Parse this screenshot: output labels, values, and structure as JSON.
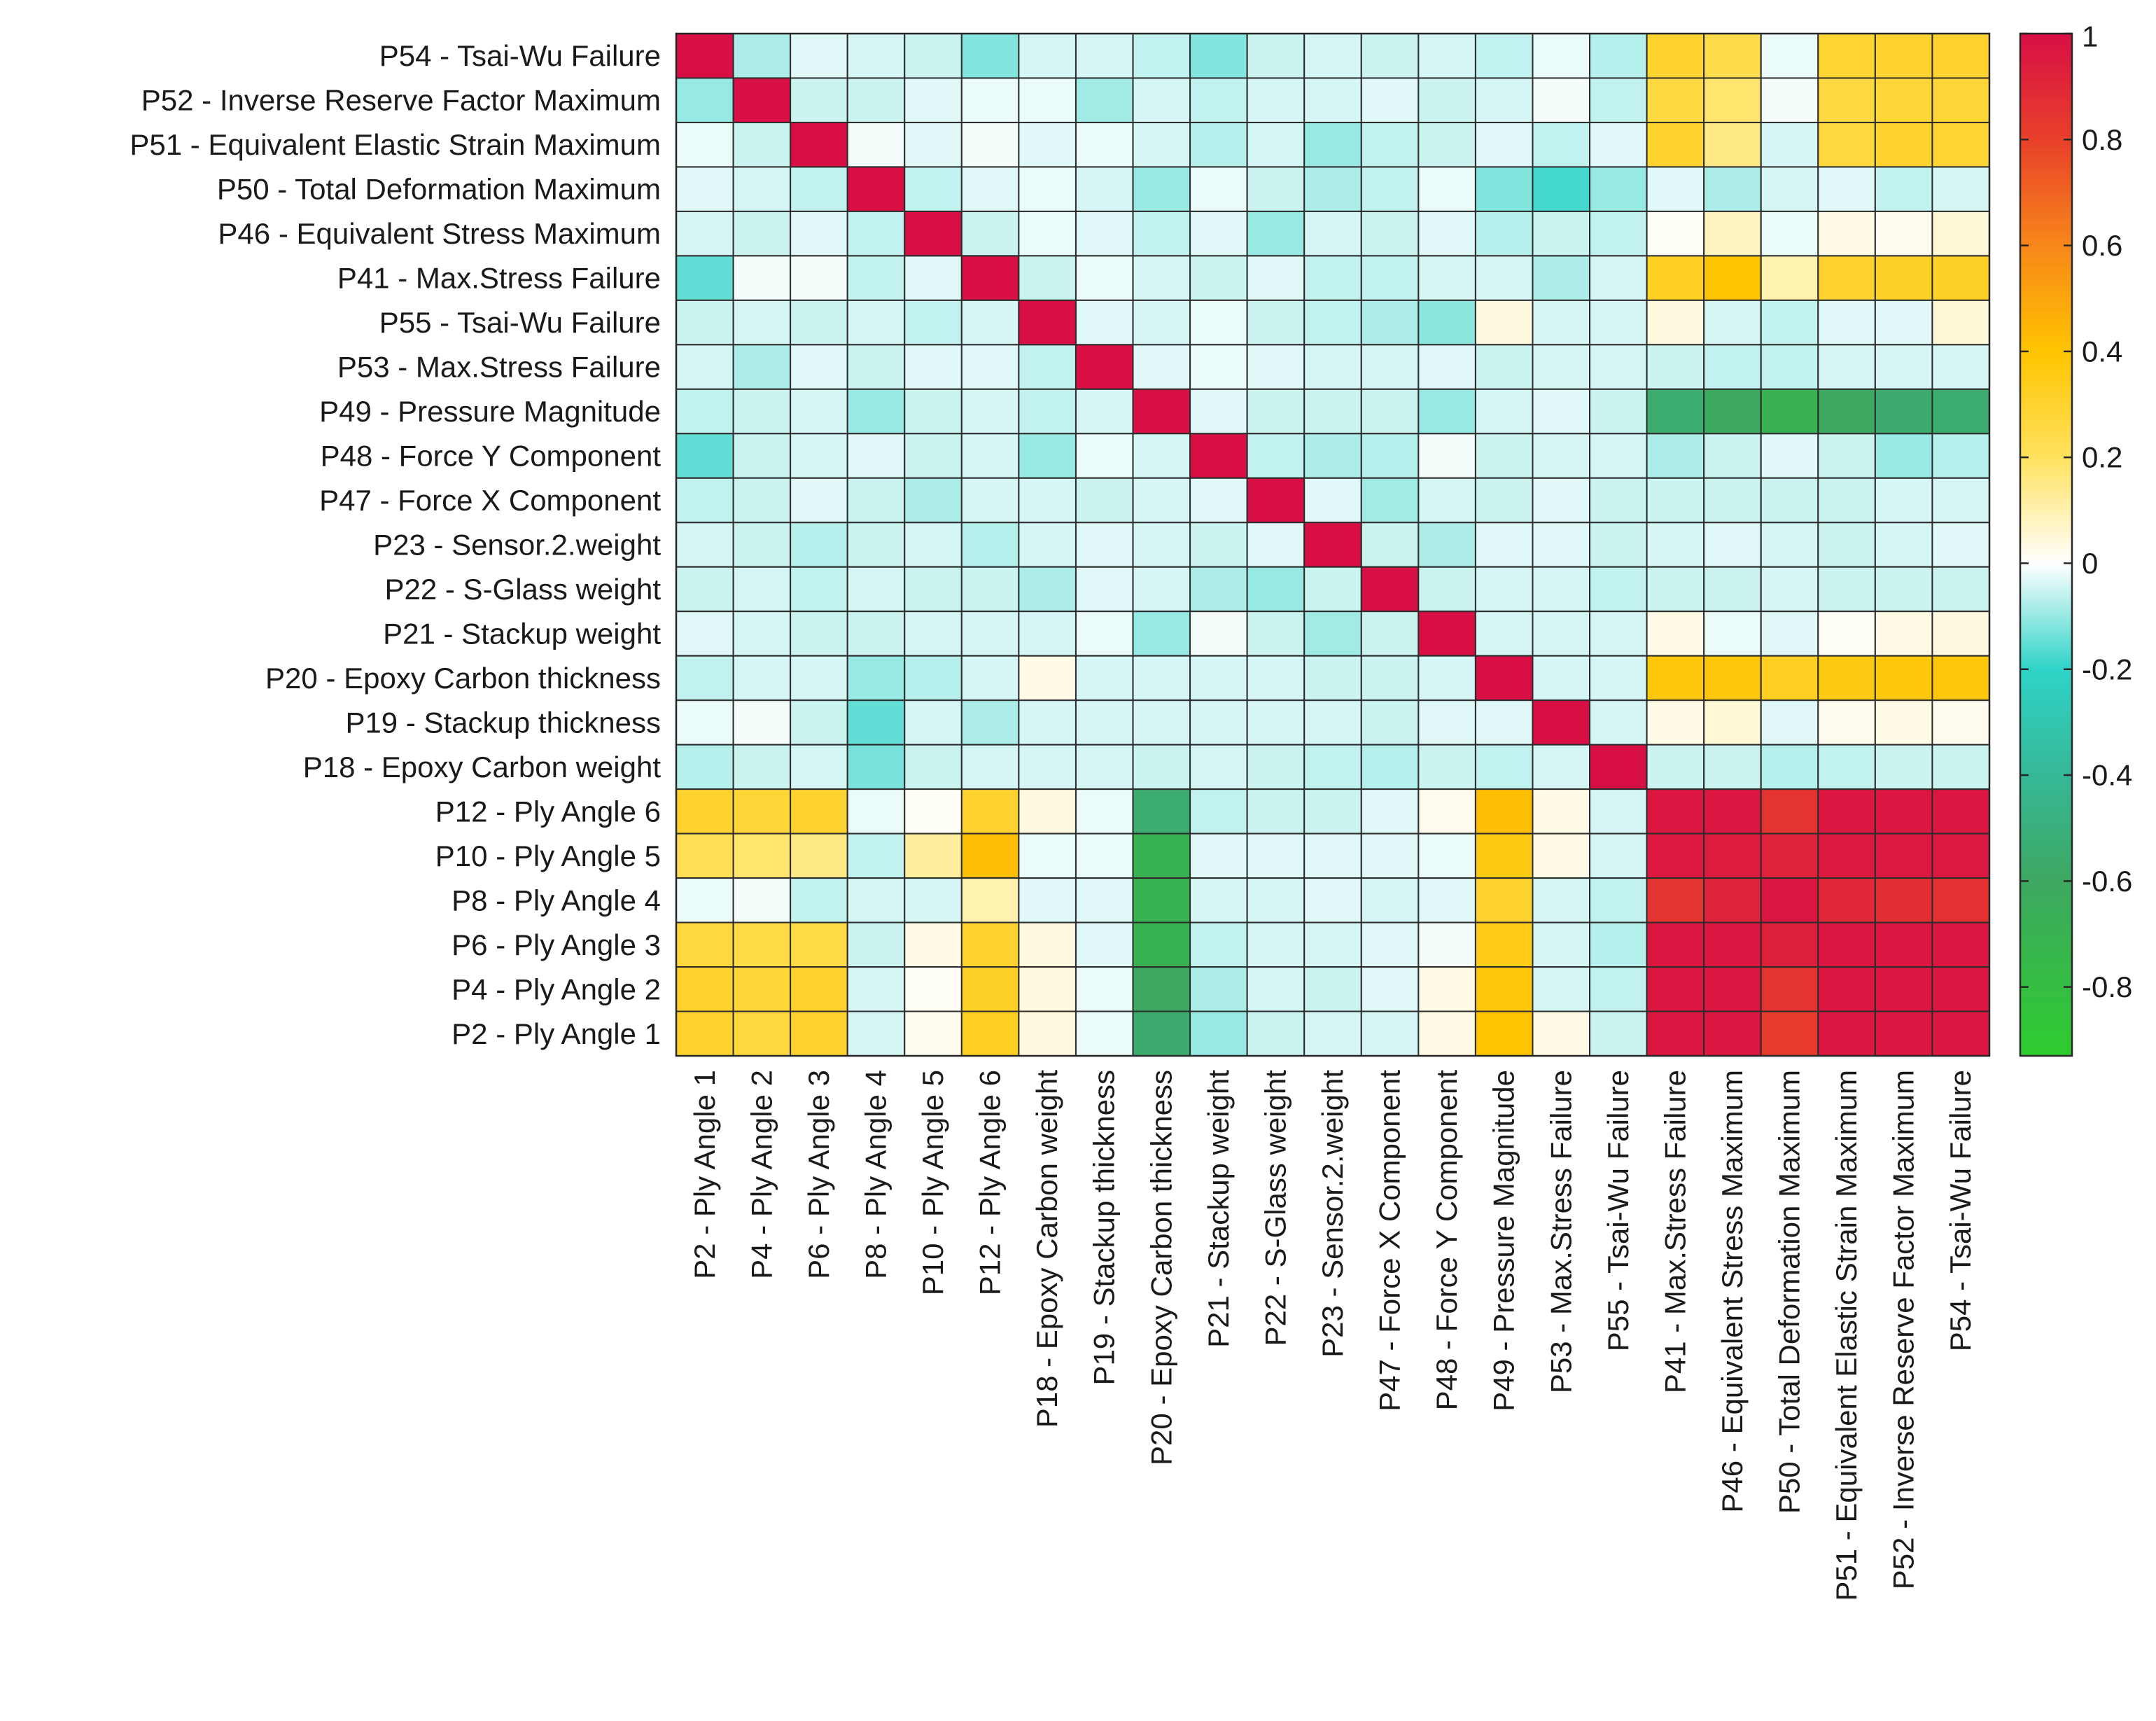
{
  "chart_data": {
    "type": "heatmap",
    "title": "",
    "xlabel": "",
    "ylabel": "",
    "x_labels": [
      "P2 - Ply Angle 1",
      "P4 - Ply Angle 2",
      "P6 - Ply Angle 3",
      "P8 - Ply Angle 4",
      "P10 - Ply Angle 5",
      "P12 - Ply Angle 6",
      "P18 - Epoxy Carbon weight",
      "P19 - Stackup thickness",
      "P20 - Epoxy Carbon thickness",
      "P21 - Stackup weight",
      "P22 - S-Glass weight",
      "P23 - Sensor.2.weight",
      "P47 - Force X Component",
      "P48 - Force Y Component",
      "P49 - Pressure Magnitude",
      "P53 - Max.Stress Failure",
      "P55 - Tsai-Wu Failure",
      "P41 - Max.Stress Failure",
      "P46 - Equivalent Stress Maximum",
      "P50 - Total Deformation Maximum",
      "P51 - Equivalent Elastic Strain Maximum",
      "P52 - Inverse Reserve Factor Maximum",
      "P54 - Tsai-Wu Failure"
    ],
    "y_labels": [
      "P54 - Tsai-Wu Failure",
      "P52 - Inverse Reserve Factor Maximum",
      "P51 - Equivalent Elastic Strain Maximum",
      "P50 - Total Deformation Maximum",
      "P46 - Equivalent Stress Maximum",
      "P41 - Max.Stress Failure",
      "P55 - Tsai-Wu Failure",
      "P53 - Max.Stress Failure",
      "P49 - Pressure Magnitude",
      "P48 - Force Y Component",
      "P47 - Force X Component",
      "P23 - Sensor.2.weight",
      "P22 - S-Glass weight",
      "P21 - Stackup weight",
      "P20 - Epoxy Carbon thickness",
      "P19 - Stackup thickness",
      "P18 - Epoxy Carbon weight",
      "P12 - Ply Angle 6",
      "P10 - Ply Angle 5",
      "P8 - Ply Angle 4",
      "P6 - Ply Angle 3",
      "P4 - Ply Angle 2",
      "P2 - Ply Angle 1"
    ],
    "values": [
      [
        1.0,
        -0.08,
        -0.03,
        -0.04,
        -0.05,
        -0.12,
        -0.04,
        -0.04,
        -0.06,
        -0.12,
        -0.05,
        -0.04,
        -0.05,
        -0.04,
        -0.06,
        -0.02,
        -0.07,
        0.3,
        0.24,
        -0.02,
        0.29,
        0.3,
        0.3
      ],
      [
        -0.1,
        1.0,
        -0.05,
        -0.05,
        -0.03,
        -0.02,
        -0.02,
        -0.09,
        -0.04,
        -0.06,
        -0.04,
        -0.04,
        -0.03,
        -0.05,
        -0.04,
        -0.01,
        -0.06,
        0.26,
        0.18,
        -0.01,
        0.26,
        0.28,
        0.28
      ],
      [
        -0.02,
        -0.05,
        1.0,
        -0.01,
        -0.03,
        -0.01,
        -0.03,
        -0.02,
        -0.04,
        -0.07,
        -0.04,
        -0.1,
        -0.06,
        -0.05,
        -0.03,
        -0.06,
        -0.03,
        0.3,
        0.15,
        -0.04,
        0.27,
        0.3,
        0.29
      ],
      [
        -0.03,
        -0.04,
        -0.06,
        1.0,
        -0.06,
        -0.03,
        -0.02,
        -0.04,
        -0.1,
        -0.02,
        -0.05,
        -0.08,
        -0.06,
        -0.02,
        -0.12,
        -0.18,
        -0.1,
        -0.03,
        -0.08,
        -0.04,
        -0.03,
        -0.06,
        -0.04
      ],
      [
        -0.04,
        -0.05,
        -0.03,
        -0.06,
        1.0,
        -0.05,
        -0.02,
        -0.03,
        -0.06,
        -0.03,
        -0.1,
        -0.04,
        -0.05,
        -0.03,
        -0.07,
        -0.05,
        -0.06,
        0.01,
        0.08,
        -0.02,
        0.03,
        0.02,
        0.05
      ],
      [
        -0.15,
        -0.01,
        -0.01,
        -0.06,
        -0.03,
        1.0,
        -0.05,
        -0.02,
        -0.04,
        -0.05,
        -0.03,
        -0.06,
        -0.06,
        -0.04,
        -0.04,
        -0.08,
        -0.04,
        0.33,
        0.4,
        0.1,
        0.3,
        0.32,
        0.32
      ],
      [
        -0.05,
        -0.04,
        -0.05,
        -0.04,
        -0.06,
        -0.04,
        1.0,
        -0.03,
        -0.04,
        -0.02,
        -0.05,
        -0.06,
        -0.08,
        -0.11,
        0.04,
        -0.04,
        -0.04,
        0.04,
        -0.04,
        -0.06,
        -0.03,
        -0.03,
        0.05
      ],
      [
        -0.04,
        -0.08,
        -0.03,
        -0.05,
        -0.03,
        -0.03,
        -0.06,
        1.0,
        -0.03,
        -0.02,
        -0.03,
        -0.04,
        -0.04,
        -0.03,
        -0.05,
        -0.04,
        -0.04,
        -0.05,
        -0.06,
        -0.06,
        -0.04,
        -0.04,
        -0.04
      ],
      [
        -0.06,
        -0.05,
        -0.04,
        -0.1,
        -0.05,
        -0.04,
        -0.06,
        -0.04,
        1.0,
        -0.03,
        -0.05,
        -0.05,
        -0.05,
        -0.1,
        -0.04,
        -0.03,
        -0.05,
        -0.55,
        -0.62,
        -0.68,
        -0.6,
        -0.56,
        -0.55
      ],
      [
        -0.15,
        -0.05,
        -0.04,
        -0.03,
        -0.05,
        -0.04,
        -0.1,
        -0.02,
        -0.04,
        1.0,
        -0.06,
        -0.08,
        -0.07,
        -0.01,
        -0.05,
        -0.04,
        -0.04,
        -0.08,
        -0.05,
        -0.03,
        -0.05,
        -0.1,
        -0.07
      ],
      [
        -0.06,
        -0.05,
        -0.03,
        -0.05,
        -0.08,
        -0.04,
        -0.04,
        -0.05,
        -0.04,
        -0.03,
        1.0,
        -0.03,
        -0.09,
        -0.04,
        -0.05,
        -0.03,
        -0.05,
        -0.05,
        -0.05,
        -0.05,
        -0.05,
        -0.04,
        -0.04
      ],
      [
        -0.04,
        -0.05,
        -0.07,
        -0.05,
        -0.04,
        -0.07,
        -0.04,
        -0.03,
        -0.04,
        -0.05,
        -0.03,
        1.0,
        -0.05,
        -0.08,
        -0.03,
        -0.03,
        -0.05,
        -0.04,
        -0.03,
        -0.04,
        -0.05,
        -0.04,
        -0.03
      ],
      [
        -0.05,
        -0.04,
        -0.06,
        -0.04,
        -0.05,
        -0.05,
        -0.08,
        -0.03,
        -0.04,
        -0.08,
        -0.1,
        -0.05,
        1.0,
        -0.05,
        -0.04,
        -0.04,
        -0.06,
        -0.05,
        -0.05,
        -0.04,
        -0.05,
        -0.05,
        -0.05
      ],
      [
        -0.03,
        -0.04,
        -0.05,
        -0.05,
        -0.04,
        -0.04,
        -0.04,
        -0.02,
        -0.1,
        -0.01,
        -0.05,
        -0.09,
        -0.05,
        1.0,
        -0.04,
        -0.04,
        -0.04,
        0.03,
        -0.02,
        -0.03,
        0.01,
        0.03,
        0.04
      ],
      [
        -0.06,
        -0.04,
        -0.04,
        -0.1,
        -0.07,
        -0.04,
        0.03,
        -0.04,
        -0.04,
        -0.04,
        -0.04,
        -0.05,
        -0.05,
        -0.04,
        1.0,
        -0.04,
        -0.04,
        0.38,
        0.38,
        0.33,
        0.36,
        0.38,
        0.38
      ],
      [
        -0.02,
        -0.01,
        -0.05,
        -0.15,
        -0.04,
        -0.08,
        -0.04,
        -0.04,
        -0.04,
        -0.04,
        -0.04,
        -0.04,
        -0.05,
        -0.03,
        -0.03,
        1.0,
        -0.04,
        0.03,
        0.05,
        -0.03,
        0.02,
        0.03,
        0.02
      ],
      [
        -0.07,
        -0.05,
        -0.04,
        -0.13,
        -0.05,
        -0.04,
        -0.04,
        -0.04,
        -0.05,
        -0.04,
        -0.05,
        -0.06,
        -0.07,
        -0.05,
        -0.06,
        -0.04,
        1.0,
        -0.05,
        -0.05,
        -0.07,
        -0.06,
        -0.05,
        -0.05
      ],
      [
        0.3,
        0.28,
        0.3,
        -0.02,
        0.01,
        0.3,
        0.04,
        -0.02,
        -0.55,
        -0.06,
        -0.05,
        -0.05,
        -0.03,
        0.02,
        0.42,
        0.03,
        -0.04,
        0.97,
        0.97,
        0.85,
        0.97,
        0.97,
        0.97
      ],
      [
        0.22,
        0.18,
        0.15,
        -0.06,
        0.12,
        0.42,
        -0.02,
        -0.02,
        -0.7,
        -0.03,
        -0.03,
        -0.03,
        -0.03,
        -0.02,
        0.36,
        0.03,
        -0.04,
        0.96,
        0.95,
        0.92,
        0.96,
        0.96,
        0.96
      ],
      [
        -0.02,
        -0.01,
        -0.06,
        -0.04,
        -0.04,
        0.1,
        -0.03,
        -0.03,
        -0.7,
        -0.04,
        -0.04,
        -0.03,
        -0.04,
        -0.03,
        0.3,
        -0.04,
        -0.06,
        0.85,
        0.92,
        0.97,
        0.9,
        0.87,
        0.86
      ],
      [
        0.27,
        0.25,
        0.25,
        -0.05,
        0.03,
        0.3,
        0.04,
        -0.03,
        -0.7,
        -0.06,
        -0.04,
        -0.04,
        -0.03,
        -0.01,
        0.35,
        -0.04,
        -0.07,
        0.97,
        0.97,
        0.93,
        0.97,
        0.97,
        0.97
      ],
      [
        0.3,
        0.28,
        0.3,
        -0.04,
        0.01,
        0.32,
        0.04,
        -0.02,
        -0.6,
        -0.08,
        -0.04,
        -0.05,
        -0.03,
        0.03,
        0.38,
        -0.04,
        -0.06,
        0.97,
        0.97,
        0.85,
        0.97,
        0.97,
        0.97
      ],
      [
        0.3,
        0.27,
        0.3,
        -0.04,
        0.02,
        0.33,
        0.04,
        -0.02,
        -0.56,
        -0.1,
        -0.05,
        -0.04,
        -0.04,
        0.03,
        0.4,
        0.03,
        -0.05,
        0.97,
        0.97,
        0.82,
        0.97,
        0.97,
        0.97
      ]
    ],
    "colorbar": {
      "ticks": [
        1,
        0.8,
        0.6,
        0.4,
        0.2,
        0,
        -0.2,
        -0.4,
        -0.6,
        -0.8
      ],
      "tick_labels": [
        "1",
        "0.8",
        "0.6",
        "0.4",
        "0.2",
        "0",
        "-0.2",
        "-0.4",
        "-0.6",
        "-0.8"
      ],
      "range": [
        -0.93,
        1
      ],
      "stops": [
        {
          "v": -0.93,
          "c": "#2ecc2e"
        },
        {
          "v": -0.6,
          "c": "#3ea862"
        },
        {
          "v": -0.4,
          "c": "#36b897"
        },
        {
          "v": -0.2,
          "c": "#2fd3c8"
        },
        {
          "v": 0,
          "c": "#ffffff"
        },
        {
          "v": 0.2,
          "c": "#ffe25e"
        },
        {
          "v": 0.4,
          "c": "#ffc400"
        },
        {
          "v": 0.6,
          "c": "#f7871a"
        },
        {
          "v": 0.8,
          "c": "#e8402a"
        },
        {
          "v": 1,
          "c": "#d80f45"
        }
      ]
    }
  }
}
